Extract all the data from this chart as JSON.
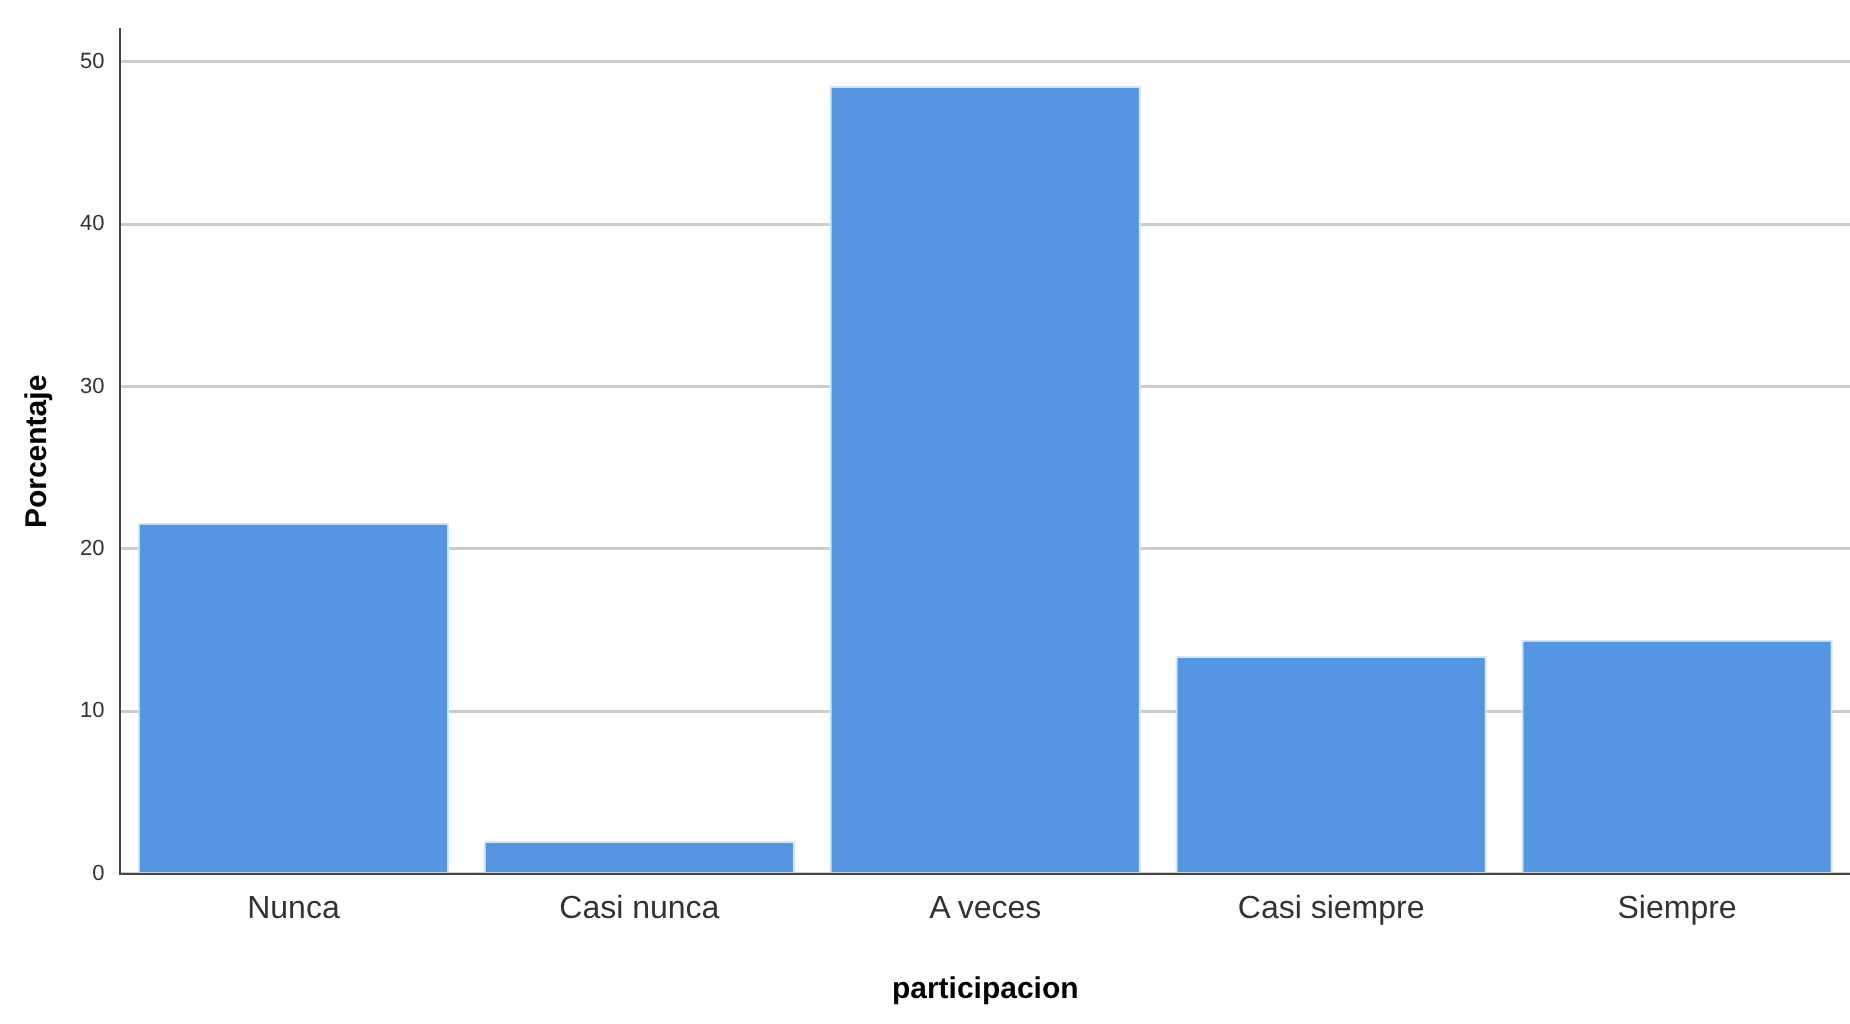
{
  "chart_data": {
    "type": "bar",
    "xlabel": "participacion",
    "ylabel": "Porcentaje",
    "categories": [
      "Nunca",
      "Casi nunca",
      "A veces",
      "Casi siempre",
      "Siempre"
    ],
    "values": [
      21.6,
      2.0,
      48.5,
      13.4,
      14.4
    ],
    "color": "#5596e3",
    "ylim": [
      0,
      52
    ],
    "yticks": [
      0,
      10,
      20,
      30,
      40,
      50
    ],
    "grid": "y",
    "legend": false
  }
}
